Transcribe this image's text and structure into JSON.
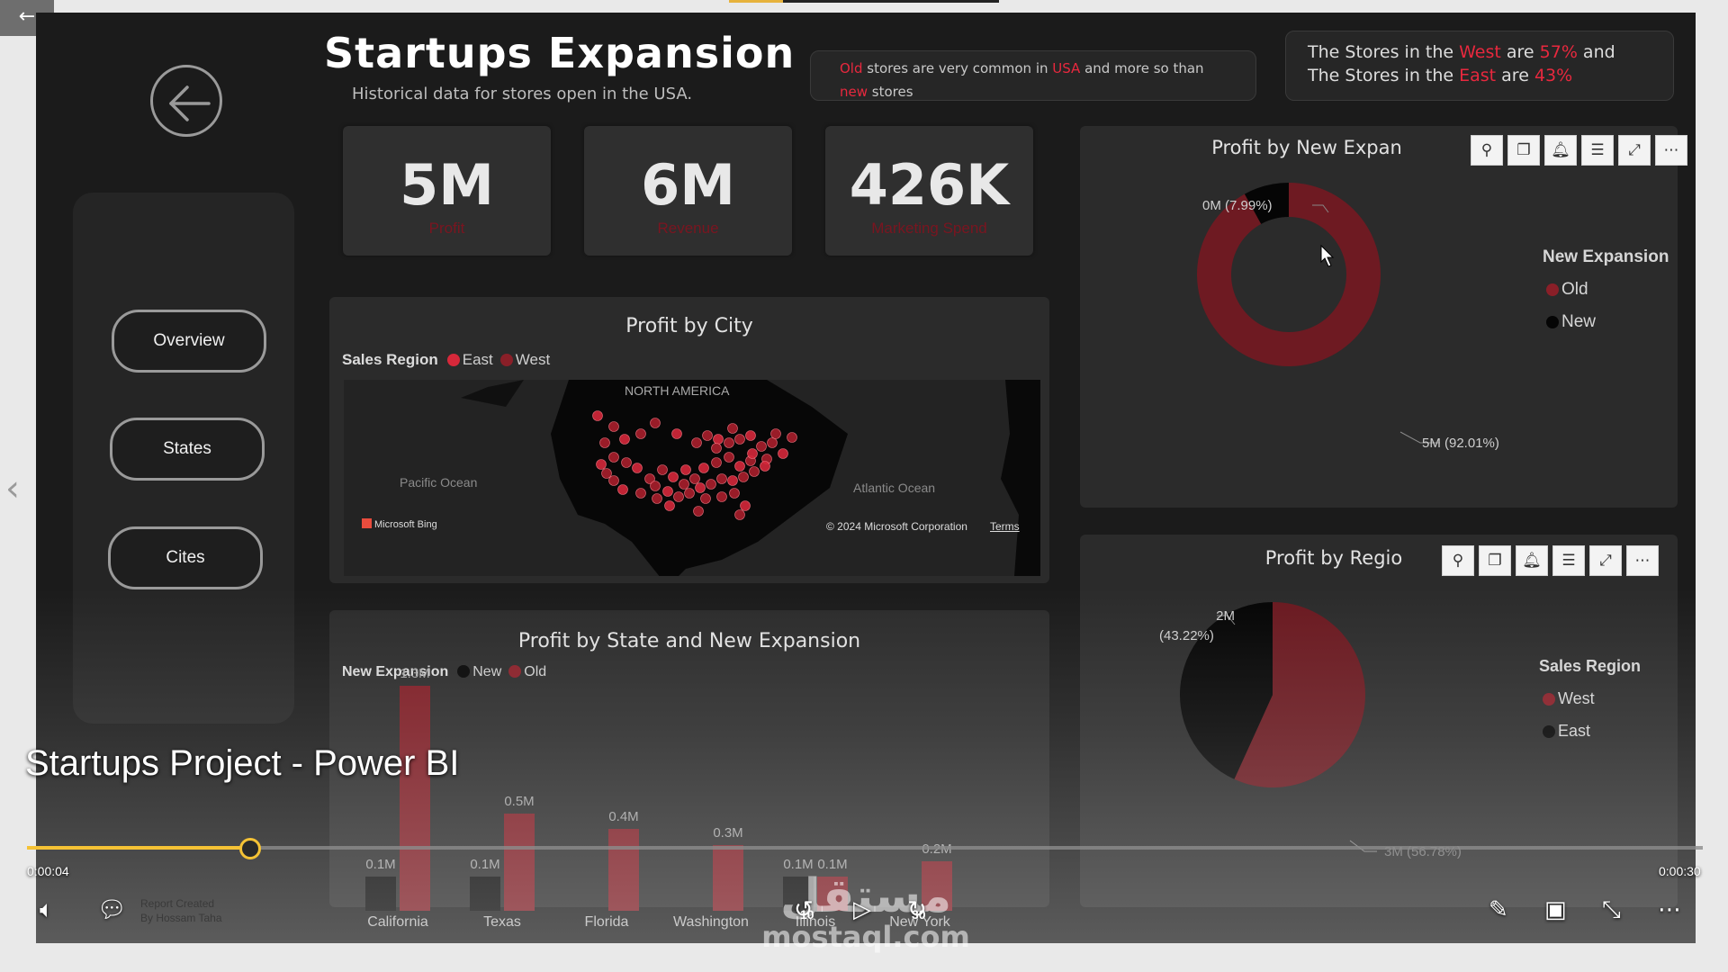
{
  "report": {
    "title": "Startups Expansion",
    "subtitle": "Historical data for stores open in the USA.",
    "note1": {
      "p1": "Old",
      "p2": " stores are very common in ",
      "p3": "USA",
      "p4": " and more so than",
      "p5": "new",
      "p6": " stores"
    },
    "note2": {
      "l1a": "The Stores in the ",
      "l1b": "West",
      "l1c": " are ",
      "l1d": "57%",
      "l1e": " and",
      "l2a": "The Stores in the ",
      "l2b": "East",
      "l2c": " are ",
      "l2d": "43%"
    },
    "nav": {
      "overview": "Overview",
      "states": "States",
      "cites": "Cites"
    },
    "kpis": [
      {
        "value": "5M",
        "label": "Profit"
      },
      {
        "value": "6M",
        "label": "Revenue"
      },
      {
        "value": "426K",
        "label": "Marketing Spend"
      }
    ],
    "map": {
      "title": "Profit by City",
      "legend_title": "Sales Region",
      "legend_east": "East",
      "legend_west": "West",
      "label_na": "NORTH AMERICA",
      "label_pacific": "Pacific Ocean",
      "label_atlantic": "Atlantic Ocean",
      "bing": "Microsoft Bing",
      "copyright": "© 2024 Microsoft Corporation",
      "terms": "Terms"
    },
    "donut": {
      "title": "Profit by New Expan",
      "legend_title": "New Expansion",
      "legend_old": "Old",
      "legend_new": "New",
      "label_new": "0M (7.99%)",
      "label_old": "5M (92.01%)"
    },
    "pie": {
      "title": "Profit by Regio",
      "legend_title": "Sales Region",
      "legend_west": "West",
      "legend_east": "East",
      "label_east_1": "2M",
      "label_east_2": "(43.22%)",
      "label_west": "3M (56.78%)"
    },
    "bars": {
      "title": "Profit by State and New Expansion",
      "legend_title": "New Expansion",
      "legend_new": "New",
      "legend_old": "Old"
    },
    "toolbar_icons": [
      "pin-icon",
      "copy-icon",
      "bell-icon",
      "filter-icon",
      "focus-icon",
      "more-icon"
    ]
  },
  "chart_data": [
    {
      "type": "pie",
      "title": "Profit by New Expan",
      "categories": [
        "Old",
        "New"
      ],
      "values": [
        92.01,
        7.99
      ],
      "donut": true,
      "legend": "right"
    },
    {
      "type": "pie",
      "title": "Profit by Regio",
      "categories": [
        "West",
        "East"
      ],
      "values": [
        56.78,
        43.22
      ],
      "legend": "right"
    },
    {
      "type": "bar",
      "title": "Profit by State and New Expansion",
      "categories": [
        "California",
        "Texas",
        "Florida",
        "Washington",
        "Illinois",
        "New York"
      ],
      "series": [
        {
          "name": "New",
          "values": [
            0.1,
            0.1,
            0,
            0,
            0.1,
            0
          ],
          "labels": [
            "0.1M",
            "0.1M",
            "",
            "",
            "0.1M",
            ""
          ]
        },
        {
          "name": "Old",
          "values": [
            1.3,
            0.5,
            0.4,
            0.3,
            0.1,
            0.2
          ],
          "labels": [
            "1.3M",
            "0.5M",
            "0.4M",
            "0.3M",
            "0.1M",
            "0.2M"
          ]
        }
      ],
      "ylim": [
        0,
        1.3
      ],
      "legend": "top-left"
    }
  ],
  "player": {
    "video_title": "Startups Project - Power BI",
    "time_current": "0:00:04",
    "time_total": "0:00:30",
    "progress": 0.1333,
    "skip_back": "10",
    "skip_fwd": "30",
    "watermark_ar": "مستقل",
    "watermark_en": "mostaql.com",
    "credit_1": "Report Created",
    "credit_2": "By Hossam Taha"
  }
}
